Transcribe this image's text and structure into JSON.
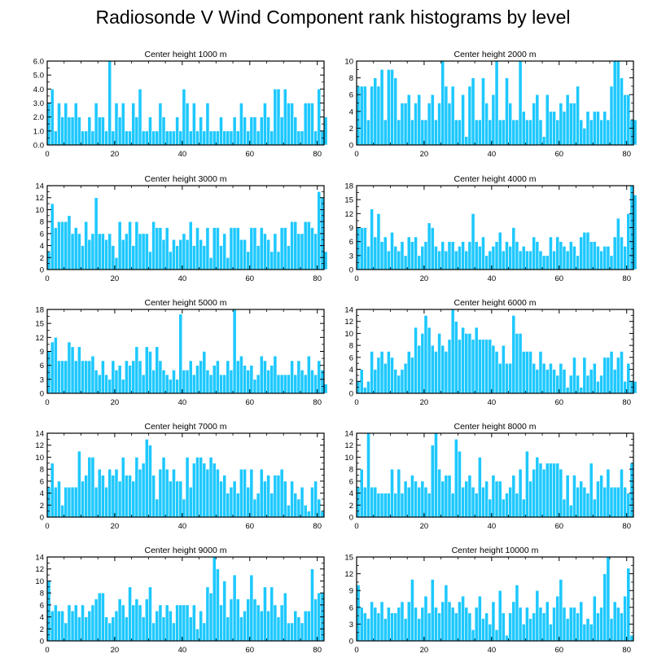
{
  "title": "Radiosonde V Wind Component rank histograms by level",
  "colors": {
    "bar": "#1ec8ff",
    "bar_edge": "#ffffff",
    "axis": "#000000"
  },
  "chart_data": [
    {
      "type": "bar",
      "title": "Center height 1000 m",
      "xlabel": "",
      "ylabel": "",
      "xlim": [
        0,
        82
      ],
      "ylim": [
        0,
        6
      ],
      "xticks": [
        0,
        20,
        40,
        60,
        80
      ],
      "xtick_labels": [
        "0",
        "20",
        "40",
        "60",
        "80"
      ],
      "yticks": [
        0,
        1,
        2,
        3,
        4,
        5,
        6
      ],
      "ytick_labels": [
        "0.0",
        "1.0",
        "2.0",
        "3.0",
        "4.0",
        "5.0",
        "6.0"
      ],
      "values": [
        3,
        4,
        1,
        3,
        2,
        3,
        2,
        2,
        3,
        2,
        1,
        1,
        2,
        1,
        3,
        2,
        2,
        1,
        6,
        1,
        3,
        2,
        3,
        1,
        1,
        3,
        2,
        4,
        1,
        1,
        2,
        1,
        1,
        3,
        2,
        1,
        1,
        1,
        2,
        1,
        4,
        3,
        1,
        3,
        1,
        2,
        1,
        3,
        1,
        1,
        1,
        2,
        1,
        1,
        1,
        2,
        1,
        3,
        2,
        1,
        2,
        2,
        1,
        2,
        3,
        2,
        1,
        4,
        4,
        2,
        4,
        3,
        3,
        2,
        1,
        1,
        3,
        3,
        3,
        1,
        4,
        1,
        2
      ]
    },
    {
      "type": "bar",
      "title": "Center height 2000 m",
      "xlabel": "",
      "ylabel": "",
      "xlim": [
        0,
        82
      ],
      "ylim": [
        0,
        10
      ],
      "xticks": [
        0,
        20,
        40,
        60,
        80
      ],
      "xtick_labels": [
        "0",
        "20",
        "40",
        "60",
        "80"
      ],
      "yticks": [
        0,
        2,
        4,
        6,
        8,
        10
      ],
      "ytick_labels": [
        "0",
        "2",
        "4",
        "6",
        "8",
        "10"
      ],
      "values": [
        7,
        7,
        7,
        3,
        7,
        8,
        7,
        9,
        3,
        9,
        9,
        8,
        3,
        5,
        5,
        6,
        3,
        5,
        6,
        3,
        3,
        5,
        6,
        3,
        5,
        10,
        7,
        5,
        7,
        3,
        3,
        6,
        1,
        7,
        8,
        3,
        3,
        8,
        5,
        3,
        6,
        10,
        3,
        3,
        8,
        5,
        3,
        3,
        10,
        4,
        3,
        3,
        5,
        6,
        3,
        1,
        6,
        4,
        4,
        3,
        5,
        4,
        6,
        5,
        5,
        7,
        3,
        2,
        4,
        3,
        4,
        4,
        3,
        4,
        3,
        7,
        10,
        10,
        8,
        6,
        6,
        3,
        3
      ]
    },
    {
      "type": "bar",
      "title": "Center height 3000 m",
      "xlabel": "",
      "ylabel": "",
      "xlim": [
        0,
        82
      ],
      "ylim": [
        0,
        14
      ],
      "xticks": [
        0,
        20,
        40,
        60,
        80
      ],
      "xtick_labels": [
        "0",
        "20",
        "40",
        "60",
        "80"
      ],
      "yticks": [
        0,
        2,
        4,
        6,
        8,
        10,
        12,
        14
      ],
      "ytick_labels": [
        "0",
        "2",
        "4",
        "6",
        "8",
        "10",
        "12",
        "14"
      ],
      "values": [
        3,
        11,
        7,
        8,
        8,
        8,
        9,
        6,
        7,
        6,
        4,
        8,
        5,
        6,
        12,
        6,
        6,
        5,
        6,
        4,
        2,
        8,
        5,
        6,
        8,
        4,
        8,
        6,
        6,
        6,
        3,
        8,
        7,
        7,
        5,
        7,
        3,
        5,
        4,
        5,
        6,
        5,
        8,
        4,
        7,
        5,
        4,
        7,
        2,
        7,
        7,
        4,
        6,
        2,
        7,
        7,
        7,
        5,
        5,
        3,
        7,
        7,
        4,
        7,
        6,
        5,
        3,
        6,
        3,
        7,
        7,
        4,
        8,
        8,
        6,
        6,
        8,
        8,
        7,
        6,
        13,
        12,
        3
      ]
    },
    {
      "type": "bar",
      "title": "Center height 4000 m",
      "xlabel": "",
      "ylabel": "",
      "xlim": [
        0,
        82
      ],
      "ylim": [
        0,
        18
      ],
      "xticks": [
        0,
        20,
        40,
        60,
        80
      ],
      "xtick_labels": [
        "0",
        "20",
        "40",
        "60",
        "80"
      ],
      "yticks": [
        0,
        3,
        6,
        9,
        12,
        15,
        18
      ],
      "ytick_labels": [
        "0",
        "3",
        "6",
        "9",
        "12",
        "15",
        "18"
      ],
      "values": [
        9,
        9,
        9,
        5,
        13,
        7,
        12,
        6,
        7,
        4,
        8,
        5,
        4,
        6,
        3,
        7,
        6,
        7,
        3,
        5,
        6,
        10,
        9,
        5,
        4,
        6,
        4,
        6,
        6,
        4,
        5,
        6,
        4,
        6,
        12,
        6,
        5,
        7,
        3,
        4,
        5,
        6,
        8,
        4,
        6,
        5,
        9,
        6,
        4,
        5,
        4,
        4,
        7,
        6,
        4,
        3,
        3,
        7,
        4,
        7,
        6,
        5,
        4,
        6,
        5,
        3,
        7,
        8,
        8,
        6,
        6,
        5,
        4,
        5,
        5,
        3,
        7,
        11,
        7,
        5,
        12,
        18,
        16
      ]
    },
    {
      "type": "bar",
      "title": "Center height 5000 m",
      "xlabel": "",
      "ylabel": "",
      "xlim": [
        0,
        82
      ],
      "ylim": [
        0,
        18
      ],
      "xticks": [
        0,
        20,
        40,
        60,
        80
      ],
      "xtick_labels": [
        "0",
        "20",
        "40",
        "60",
        "80"
      ],
      "yticks": [
        0,
        3,
        6,
        9,
        12,
        15,
        18
      ],
      "ytick_labels": [
        "0",
        "3",
        "6",
        "9",
        "12",
        "15",
        "18"
      ],
      "values": [
        9,
        11,
        12,
        7,
        7,
        7,
        11,
        10,
        7,
        10,
        7,
        7,
        7,
        8,
        5,
        4,
        7,
        4,
        3,
        7,
        5,
        6,
        3,
        7,
        6,
        7,
        10,
        7,
        4,
        10,
        9,
        5,
        10,
        7,
        5,
        4,
        3,
        5,
        3,
        17,
        5,
        5,
        7,
        4,
        6,
        7,
        9,
        5,
        4,
        6,
        7,
        4,
        4,
        7,
        5,
        18,
        7,
        8,
        6,
        5,
        6,
        3,
        4,
        8,
        7,
        5,
        6,
        8,
        4,
        4,
        4,
        4,
        7,
        4,
        7,
        5,
        4,
        8,
        5,
        4,
        7,
        5,
        2
      ]
    },
    {
      "type": "bar",
      "title": "Center height 6000 m",
      "xlabel": "",
      "ylabel": "",
      "xlim": [
        0,
        82
      ],
      "ylim": [
        0,
        14
      ],
      "xticks": [
        0,
        20,
        40,
        60,
        80
      ],
      "xtick_labels": [
        "0",
        "20",
        "40",
        "60",
        "80"
      ],
      "yticks": [
        0,
        2,
        4,
        6,
        8,
        10,
        12,
        14
      ],
      "ytick_labels": [
        "0",
        "2",
        "4",
        "6",
        "8",
        "10",
        "12",
        "14"
      ],
      "values": [
        2,
        4,
        1,
        2,
        7,
        4,
        6,
        7,
        5,
        7,
        6,
        4,
        3,
        4,
        5,
        7,
        6,
        11,
        8,
        10,
        13,
        11,
        8,
        7,
        10,
        8,
        7,
        9,
        14,
        12,
        9,
        11,
        10,
        10,
        9,
        11,
        9,
        9,
        9,
        9,
        8,
        7,
        5,
        8,
        5,
        5,
        13,
        10,
        10,
        7,
        7,
        7,
        5,
        4,
        7,
        5,
        4,
        5,
        4,
        3,
        5,
        4,
        1,
        3,
        6,
        3,
        1,
        6,
        3,
        4,
        5,
        2,
        3,
        6,
        6,
        7,
        4,
        6,
        7,
        2,
        5,
        2,
        2
      ]
    },
    {
      "type": "bar",
      "title": "Center height 7000 m",
      "xlabel": "",
      "ylabel": "",
      "xlim": [
        0,
        82
      ],
      "ylim": [
        0,
        14
      ],
      "xticks": [
        0,
        20,
        40,
        60,
        80
      ],
      "xtick_labels": [
        "0",
        "20",
        "40",
        "60",
        "80"
      ],
      "yticks": [
        0,
        2,
        4,
        6,
        8,
        10,
        12,
        14
      ],
      "ytick_labels": [
        "0",
        "2",
        "4",
        "6",
        "8",
        "10",
        "12",
        "14"
      ],
      "values": [
        5,
        9,
        5,
        6,
        2,
        5,
        5,
        5,
        5,
        11,
        6,
        7,
        10,
        10,
        5,
        8,
        7,
        5,
        8,
        7,
        8,
        6,
        10,
        7,
        7,
        6,
        10,
        8,
        9,
        13,
        12,
        7,
        3,
        8,
        10,
        8,
        6,
        8,
        6,
        6,
        3,
        10,
        5,
        9,
        10,
        10,
        9,
        8,
        10,
        9,
        8,
        6,
        7,
        4,
        5,
        6,
        4,
        8,
        8,
        5,
        8,
        3,
        4,
        8,
        6,
        7,
        4,
        7,
        7,
        8,
        6,
        2,
        6,
        4,
        3,
        5,
        2,
        1,
        5,
        6,
        3,
        1
      ]
    },
    {
      "type": "bar",
      "title": "Center height 8000 m",
      "xlabel": "",
      "ylabel": "",
      "xlim": [
        0,
        82
      ],
      "ylim": [
        0,
        14
      ],
      "xticks": [
        0,
        20,
        40,
        60,
        80
      ],
      "xtick_labels": [
        "0",
        "20",
        "40",
        "60",
        "80"
      ],
      "yticks": [
        0,
        2,
        4,
        6,
        8,
        10,
        12,
        14
      ],
      "ytick_labels": [
        "0",
        "2",
        "4",
        "6",
        "8",
        "10",
        "12",
        "14"
      ],
      "values": [
        5,
        8,
        5,
        14,
        5,
        5,
        4,
        4,
        4,
        4,
        8,
        4,
        8,
        4,
        6,
        5,
        7,
        6,
        5,
        6,
        5,
        4,
        12,
        14,
        8,
        6,
        7,
        7,
        4,
        13,
        11,
        5,
        6,
        7,
        5,
        4,
        10,
        5,
        6,
        3,
        7,
        6,
        6,
        3,
        4,
        5,
        7,
        4,
        8,
        3,
        11,
        6,
        8,
        10,
        9,
        8,
        9,
        9,
        9,
        9,
        8,
        3,
        7,
        2,
        7,
        5,
        6,
        5,
        4,
        9,
        3,
        6,
        7,
        5,
        8,
        5,
        5,
        5,
        8,
        5,
        4,
        9
      ]
    },
    {
      "type": "bar",
      "title": "Center height 9000 m",
      "xlabel": "",
      "ylabel": "",
      "xlim": [
        0,
        82
      ],
      "ylim": [
        0,
        14
      ],
      "xticks": [
        0,
        20,
        40,
        60,
        80
      ],
      "xtick_labels": [
        "0",
        "20",
        "40",
        "60",
        "80"
      ],
      "yticks": [
        0,
        2,
        4,
        6,
        8,
        10,
        12,
        14
      ],
      "ytick_labels": [
        "0",
        "2",
        "4",
        "6",
        "8",
        "10",
        "12",
        "14"
      ],
      "values": [
        10,
        5,
        6,
        5,
        5,
        3,
        6,
        5,
        6,
        4,
        6,
        4,
        5,
        6,
        7,
        8,
        8,
        4,
        3,
        4,
        5,
        7,
        6,
        4,
        9,
        6,
        7,
        6,
        4,
        7,
        9,
        3,
        5,
        6,
        4,
        6,
        5,
        3,
        6,
        6,
        6,
        6,
        4,
        6,
        2,
        5,
        3,
        9,
        8,
        14,
        12,
        6,
        10,
        4,
        7,
        11,
        7,
        4,
        5,
        7,
        11,
        7,
        6,
        5,
        9,
        5,
        9,
        6,
        4,
        6,
        8,
        3,
        3,
        5,
        4,
        3,
        5,
        5,
        12,
        7,
        8,
        8
      ]
    },
    {
      "type": "bar",
      "title": "Center height 10000 m",
      "xlabel": "",
      "ylabel": "",
      "xlim": [
        0,
        82
      ],
      "ylim": [
        0,
        15
      ],
      "xticks": [
        0,
        20,
        40,
        60,
        80
      ],
      "xtick_labels": [
        "0",
        "20",
        "40",
        "60",
        "80"
      ],
      "yticks": [
        0,
        3,
        6,
        9,
        12,
        15
      ],
      "ytick_labels": [
        "0",
        "3",
        "6",
        "9",
        "12",
        "15"
      ],
      "values": [
        10,
        6,
        5,
        4,
        7,
        6,
        5,
        7,
        4,
        6,
        5,
        5,
        6,
        7,
        4,
        7,
        11,
        6,
        4,
        6,
        8,
        5,
        11,
        6,
        5,
        7,
        10,
        7,
        6,
        5,
        7,
        8,
        6,
        5,
        2,
        6,
        8,
        4,
        5,
        3,
        7,
        2,
        9,
        5,
        1,
        5,
        7,
        10,
        6,
        3,
        6,
        4,
        5,
        9,
        6,
        5,
        7,
        3,
        6,
        8,
        11,
        6,
        4,
        6,
        6,
        5,
        7,
        3,
        4,
        3,
        8,
        5,
        6,
        12,
        15,
        4,
        7,
        6,
        5,
        8,
        13,
        1
      ]
    }
  ]
}
